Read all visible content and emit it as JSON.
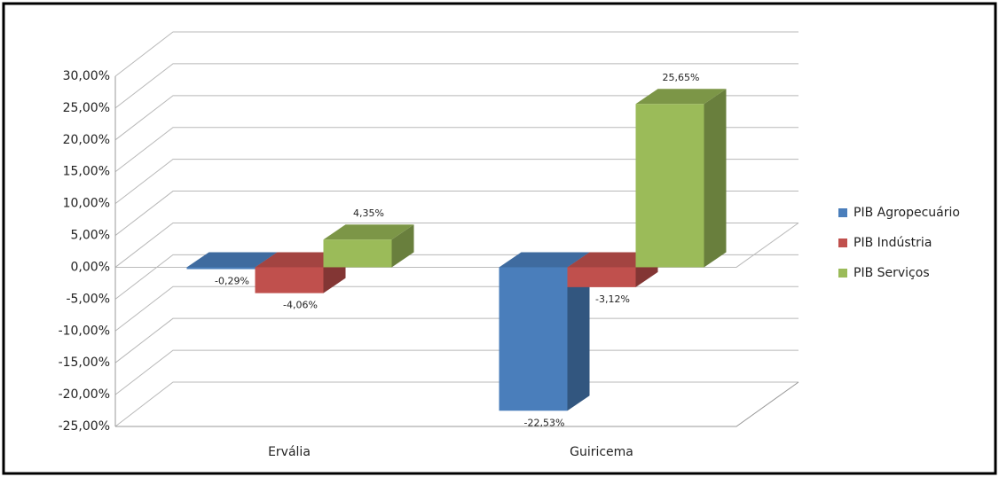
{
  "chart_data": {
    "type": "bar3d",
    "categories": [
      "Ervália",
      "Guiricema"
    ],
    "series": [
      {
        "name": "PIB Agropecuário",
        "color": "#4a7ebb",
        "values": [
          -0.29,
          -22.53
        ],
        "value_labels": [
          "-0,29%",
          "-22,53%"
        ]
      },
      {
        "name": "PIB Indústria",
        "color": "#c0504d",
        "values": [
          -4.06,
          -3.12
        ],
        "value_labels": [
          "-4,06%",
          "-3,12%"
        ]
      },
      {
        "name": "PIB Serviços",
        "color": "#9bbb59",
        "values": [
          4.35,
          25.65
        ],
        "value_labels": [
          "4,35%",
          "25,65%"
        ]
      }
    ],
    "ylim": [
      -25,
      30
    ],
    "yticks": [
      {
        "value": 30,
        "label": "30,00%"
      },
      {
        "value": 25,
        "label": "25,00%"
      },
      {
        "value": 20,
        "label": "20,00%"
      },
      {
        "value": 15,
        "label": "15,00%"
      },
      {
        "value": 10,
        "label": "10,00%"
      },
      {
        "value": 5,
        "label": "5,00%"
      },
      {
        "value": 0,
        "label": "0,00%"
      },
      {
        "value": -5,
        "label": "-5,00%"
      },
      {
        "value": -10,
        "label": "-10,00%"
      },
      {
        "value": -15,
        "label": "-15,00%"
      },
      {
        "value": -20,
        "label": "-20,00%"
      },
      {
        "value": -25,
        "label": "-25,00%"
      }
    ],
    "grid": true,
    "legend": "right"
  }
}
